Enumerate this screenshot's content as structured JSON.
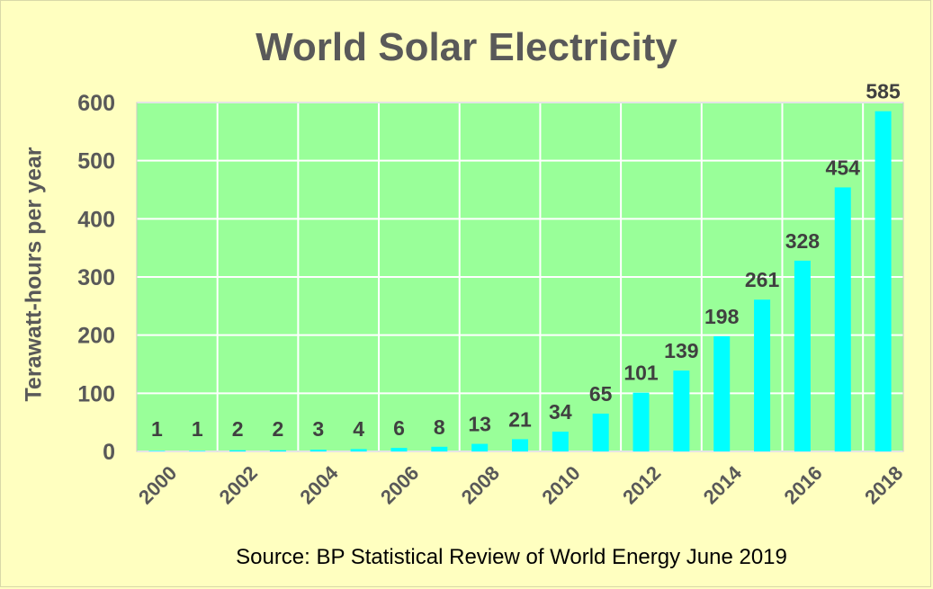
{
  "chart_data": {
    "type": "bar",
    "title": "World Solar Electricity",
    "ylabel": "Terawatt-hours per year",
    "xlabel": "",
    "source": "Source: BP Statistical Review of World Energy June 2019",
    "categories": [
      "2000",
      "2001",
      "2002",
      "2003",
      "2004",
      "2005",
      "2006",
      "2007",
      "2008",
      "2009",
      "2010",
      "2011",
      "2012",
      "2013",
      "2014",
      "2015",
      "2016",
      "2017",
      "2018"
    ],
    "x_tick_labels": [
      "2000",
      "2002",
      "2004",
      "2006",
      "2008",
      "2010",
      "2012",
      "2014",
      "2016",
      "2018"
    ],
    "values": [
      1,
      1,
      2,
      2,
      3,
      4,
      6,
      8,
      13,
      21,
      34,
      65,
      101,
      139,
      198,
      261,
      328,
      454,
      585
    ],
    "ylim": [
      0,
      600
    ],
    "yticks": [
      0,
      100,
      200,
      300,
      400,
      500,
      600
    ],
    "grid": true,
    "legend": "none",
    "colors": {
      "bar": "#00ffff",
      "plot_background": "#99ff99",
      "page_background": "#ffffc0",
      "gridline": "#ffffff",
      "text": "#595959"
    }
  }
}
